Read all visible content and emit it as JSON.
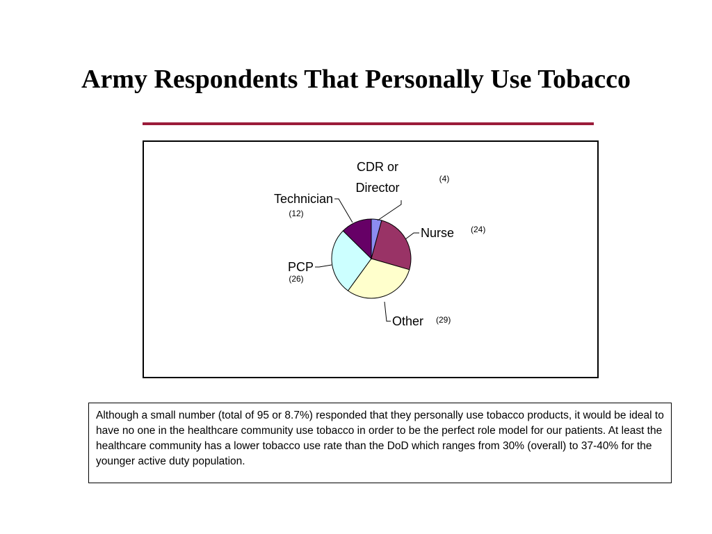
{
  "slide": {
    "title": "Army Respondents That Personally Use Tobacco",
    "note": "Although a small number (total of 95 or 8.7%) responded that they personally use tobacco products, it would be ideal to have no one in the healthcare community use tobacco in order to be the perfect role model for our patients.  At least the healthcare community has a lower tobacco use rate than the DoD which ranges from 30% (overall) to 37-40% for the younger active duty population."
  },
  "chart_data": {
    "type": "pie",
    "title": "",
    "slices": [
      {
        "label_lines": [
          "CDR or",
          "Director"
        ],
        "count_text": "(4)",
        "value": 4,
        "color": "#8c8cf0"
      },
      {
        "label_lines": [
          "Nurse"
        ],
        "count_text": "(24)",
        "value": 24,
        "color": "#993366"
      },
      {
        "label_lines": [
          "Other"
        ],
        "count_text": "(29)",
        "value": 29,
        "color": "#ffffcc"
      },
      {
        "label_lines": [
          "PCP"
        ],
        "count_text": "(26)",
        "value": 26,
        "color": "#ccffff"
      },
      {
        "label_lines": [
          "Technician"
        ],
        "count_text": "(12)",
        "value": 12,
        "color": "#660066"
      }
    ],
    "legend": "none"
  }
}
